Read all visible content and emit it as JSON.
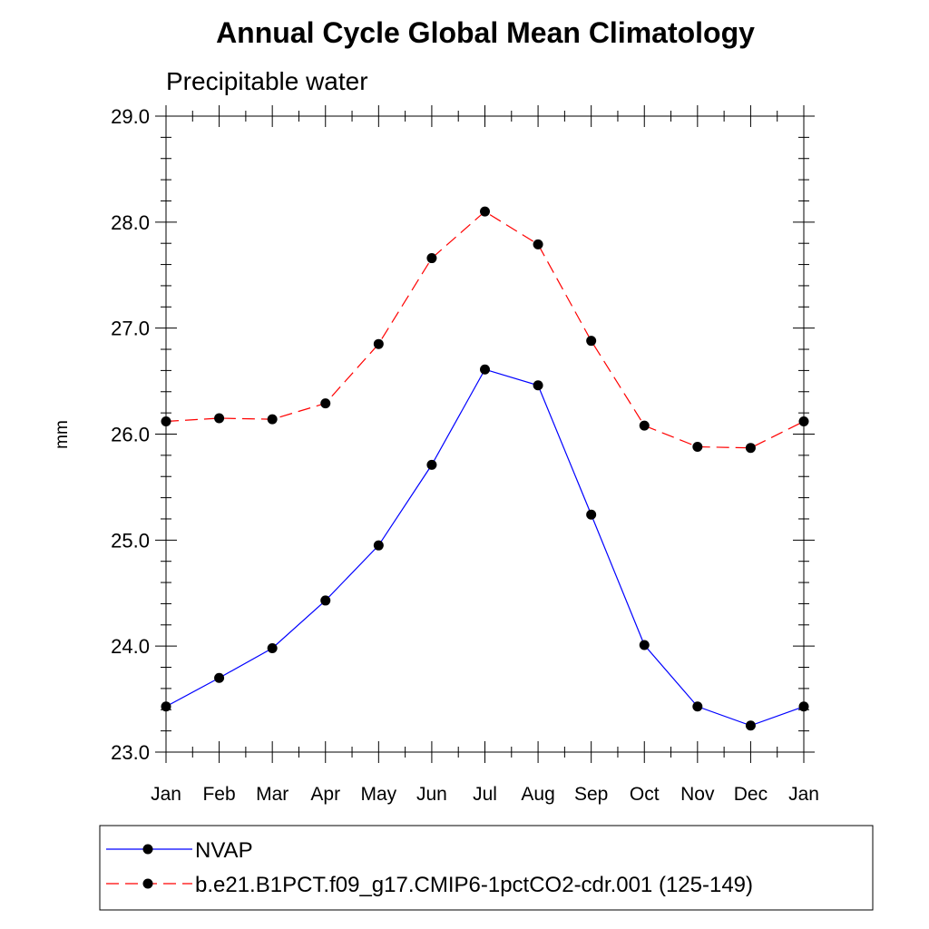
{
  "chart_data": {
    "type": "line",
    "title": "Annual Cycle Global Mean Climatology",
    "subtitle": "Precipitable water",
    "xlabel": "",
    "ylabel": "mm",
    "categories": [
      "Jan",
      "Feb",
      "Mar",
      "Apr",
      "May",
      "Jun",
      "Jul",
      "Aug",
      "Sep",
      "Oct",
      "Nov",
      "Dec",
      "Jan"
    ],
    "ylim": [
      23.0,
      29.0
    ],
    "yticks": [
      23.0,
      24.0,
      25.0,
      26.0,
      27.0,
      28.0,
      29.0
    ],
    "ytick_labels": [
      "23.0",
      "24.0",
      "25.0",
      "26.0",
      "27.0",
      "28.0",
      "29.0"
    ],
    "grid": false,
    "legend_position": "bottom",
    "series": [
      {
        "name": "NVAP",
        "color": "#0000ff",
        "line_style": "solid",
        "marker": "filled-circle",
        "values": [
          23.43,
          23.7,
          23.98,
          24.43,
          24.95,
          25.71,
          26.61,
          26.46,
          25.24,
          24.01,
          23.43,
          23.25,
          23.43
        ]
      },
      {
        "name": "b.e21.B1PCT.f09_g17.CMIP6-1pctCO2-cdr.001 (125-149)",
        "color": "#ff0000",
        "line_style": "dashed",
        "marker": "filled-circle",
        "values": [
          26.12,
          26.15,
          26.14,
          26.29,
          26.85,
          27.66,
          28.1,
          27.79,
          26.88,
          26.08,
          25.88,
          25.87,
          26.12
        ]
      }
    ]
  }
}
